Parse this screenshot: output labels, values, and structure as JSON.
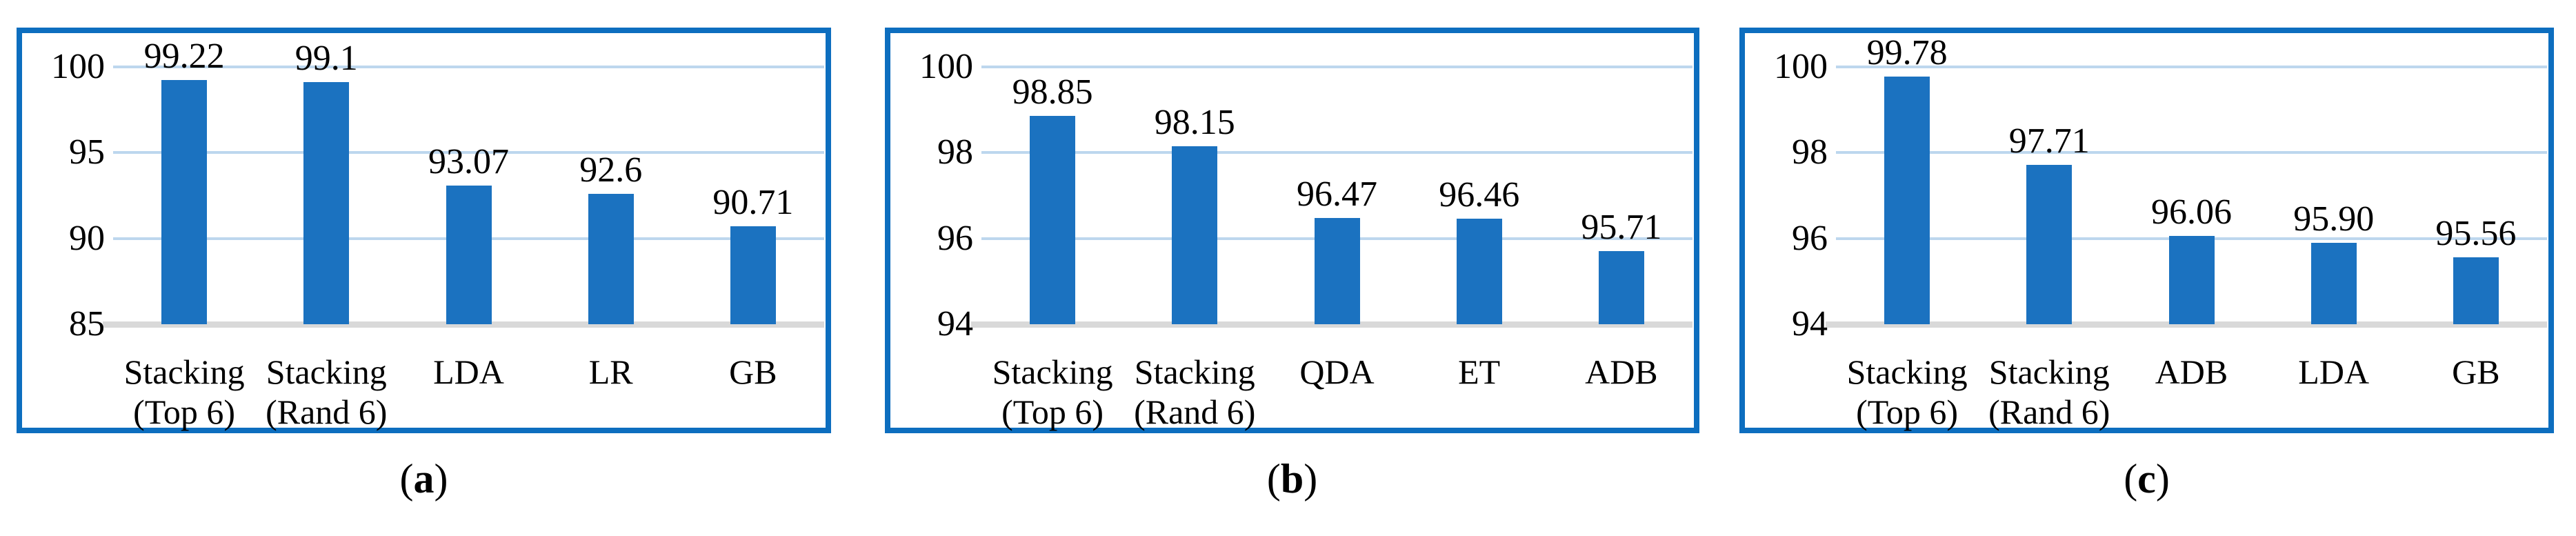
{
  "colors": {
    "bar": "#1B72C0",
    "panel_border": "#0D6EBF",
    "gridline": "#BDD7EE",
    "baseline": "#D9D9D9",
    "text": "#000000",
    "background": "#FFFFFF"
  },
  "chart_data": [
    {
      "type": "bar",
      "panel": "a",
      "title": "",
      "xlabel": "",
      "ylabel": "",
      "categories": [
        "Stacking (Top 6)",
        "Stacking (Rand 6)",
        "LDA",
        "LR",
        "GB"
      ],
      "category_lines": [
        [
          "Stacking",
          "(Top 6)"
        ],
        [
          "Stacking",
          "(Rand 6)"
        ],
        [
          "LDA"
        ],
        [
          "LR"
        ],
        [
          "GB"
        ]
      ],
      "values": [
        99.22,
        99.1,
        93.07,
        92.6,
        90.71
      ],
      "value_labels": [
        "99.22",
        "99.1",
        "93.07",
        "92.6",
        "90.71"
      ],
      "ylim": [
        85,
        100
      ],
      "yticks": [
        "85",
        "90",
        "95",
        "100"
      ],
      "grid": true,
      "legend": false
    },
    {
      "type": "bar",
      "panel": "b",
      "title": "",
      "xlabel": "",
      "ylabel": "",
      "categories": [
        "Stacking (Top 6)",
        "Stacking (Rand 6)",
        "QDA",
        "ET",
        "ADB"
      ],
      "category_lines": [
        [
          "Stacking",
          "(Top 6)"
        ],
        [
          "Stacking",
          "(Rand 6)"
        ],
        [
          "QDA"
        ],
        [
          "ET"
        ],
        [
          "ADB"
        ]
      ],
      "values": [
        98.85,
        98.15,
        96.47,
        96.46,
        95.71
      ],
      "value_labels": [
        "98.85",
        "98.15",
        "96.47",
        "96.46",
        "95.71"
      ],
      "ylim": [
        94,
        100
      ],
      "yticks": [
        "94",
        "96",
        "98",
        "100"
      ],
      "grid": true,
      "legend": false
    },
    {
      "type": "bar",
      "panel": "c",
      "title": "",
      "xlabel": "",
      "ylabel": "",
      "categories": [
        "Stacking (Top 6)",
        "Stacking (Rand 6)",
        "ADB",
        "LDA",
        "GB"
      ],
      "category_lines": [
        [
          "Stacking",
          "(Top 6)"
        ],
        [
          "Stacking",
          "(Rand 6)"
        ],
        [
          "ADB"
        ],
        [
          "LDA"
        ],
        [
          "GB"
        ]
      ],
      "values": [
        99.78,
        97.71,
        96.06,
        95.9,
        95.56
      ],
      "value_labels": [
        "99.78",
        "97.71",
        "96.06",
        "95.90",
        "95.56"
      ],
      "ylim": [
        94,
        100
      ],
      "yticks": [
        "94",
        "96",
        "98",
        "100"
      ],
      "grid": true,
      "legend": false
    }
  ],
  "captions": [
    {
      "open": "(",
      "letter": "a",
      "close": ")"
    },
    {
      "open": "(",
      "letter": "b",
      "close": ")"
    },
    {
      "open": "(",
      "letter": "c",
      "close": ")"
    }
  ]
}
